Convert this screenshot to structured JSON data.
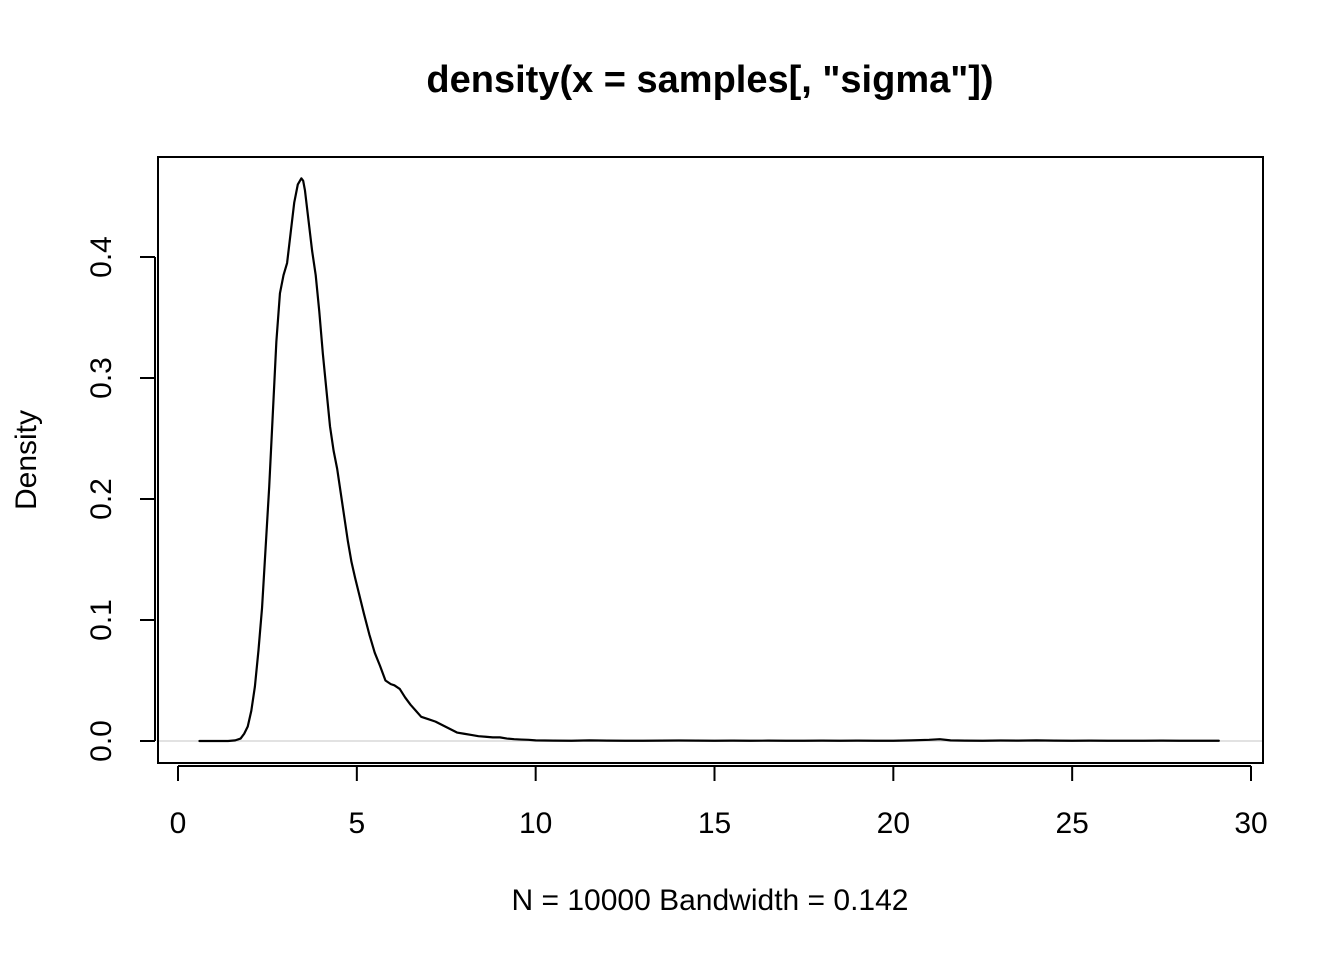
{
  "chart_data": {
    "type": "line",
    "title": "density(x = samples[, \"sigma\"])",
    "xlabel": "N = 10000   Bandwidth = 0.142",
    "ylabel": "Density",
    "xlim": [
      0,
      30
    ],
    "ylim": [
      0,
      0.46
    ],
    "x_ticks": [
      0,
      5,
      10,
      15,
      20,
      25,
      30
    ],
    "y_ticks": [
      0.0,
      0.1,
      0.2,
      0.3,
      0.4
    ],
    "x_tick_labels": [
      "0",
      "5",
      "10",
      "15",
      "20",
      "25",
      "30"
    ],
    "y_tick_labels": [
      "0.0",
      "0.1",
      "0.2",
      "0.3",
      "0.4"
    ],
    "grid": false,
    "zero_line": true,
    "colors": {
      "line": "#000000",
      "zero_line": "#d9d9d9",
      "frame": "#000000",
      "background": "#ffffff"
    },
    "series": [
      {
        "x": [
          0.6,
          1.0,
          1.4,
          1.6,
          1.75,
          1.85,
          1.95,
          2.05,
          2.15,
          2.25,
          2.35,
          2.45,
          2.55,
          2.65,
          2.75,
          2.85,
          2.95,
          3.05,
          3.15,
          3.25,
          3.35,
          3.45,
          3.5,
          3.55,
          3.65,
          3.75,
          3.85,
          3.95,
          4.05,
          4.15,
          4.25,
          4.35,
          4.45,
          4.55,
          4.65,
          4.75,
          4.85,
          4.95,
          5.05,
          5.2,
          5.35,
          5.5,
          5.65,
          5.8,
          5.95,
          6.05,
          6.2,
          6.35,
          6.5,
          6.65,
          6.8,
          7.0,
          7.2,
          7.4,
          7.6,
          7.8,
          8.0,
          8.2,
          8.4,
          8.6,
          8.8,
          9.0,
          9.2,
          9.4,
          9.6,
          9.8,
          10.0,
          10.5,
          11.0,
          11.5,
          12.0,
          12.5,
          13.0,
          13.5,
          14.0,
          14.5,
          15.0,
          15.5,
          16.0,
          16.5,
          17.0,
          17.5,
          18.0,
          18.5,
          19.0,
          19.5,
          20.0,
          20.5,
          21.0,
          21.3,
          21.6,
          22.0,
          22.5,
          23.0,
          23.5,
          24.0,
          24.5,
          25.0,
          25.5,
          26.0,
          26.5,
          27.0,
          27.5,
          28.0,
          28.5,
          29.1
        ],
        "y": [
          0.0,
          0.0,
          0.0,
          0.0005,
          0.002,
          0.006,
          0.012,
          0.025,
          0.045,
          0.075,
          0.11,
          0.16,
          0.21,
          0.27,
          0.33,
          0.37,
          0.385,
          0.395,
          0.42,
          0.445,
          0.46,
          0.465,
          0.463,
          0.455,
          0.43,
          0.405,
          0.385,
          0.355,
          0.32,
          0.29,
          0.26,
          0.24,
          0.225,
          0.205,
          0.185,
          0.165,
          0.148,
          0.135,
          0.123,
          0.105,
          0.088,
          0.073,
          0.062,
          0.05,
          0.047,
          0.046,
          0.043,
          0.036,
          0.03,
          0.025,
          0.02,
          0.018,
          0.016,
          0.013,
          0.01,
          0.007,
          0.006,
          0.005,
          0.004,
          0.0035,
          0.003,
          0.003,
          0.002,
          0.0015,
          0.0012,
          0.001,
          0.0005,
          0.0003,
          0.0002,
          0.0005,
          0.0003,
          0.0002,
          0.0002,
          0.0003,
          0.0004,
          0.0003,
          0.0002,
          0.0003,
          0.0002,
          0.0003,
          0.0002,
          0.0002,
          0.0003,
          0.0002,
          0.0003,
          0.0002,
          0.0002,
          0.0005,
          0.001,
          0.0015,
          0.0005,
          0.0003,
          0.0002,
          0.0004,
          0.0003,
          0.0005,
          0.0003,
          0.0002,
          0.0003,
          0.0002,
          0.0002,
          0.0002,
          0.0003,
          0.0002,
          0.0002,
          0.0002
        ]
      }
    ]
  }
}
